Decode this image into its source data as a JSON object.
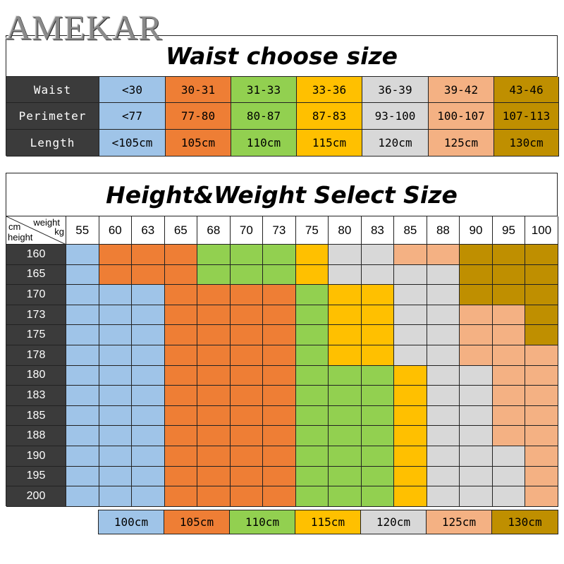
{
  "brand": "AMEKAR",
  "colors": {
    "blue": "#9fc4e8",
    "orange": "#ee7e35",
    "green": "#92d050",
    "yellow": "#ffc000",
    "gray": "#d8d8d8",
    "peach": "#f4b183",
    "brown": "#bf8f00",
    "header_dark": "#3b3b3b"
  },
  "waist_table": {
    "title": "Waist choose size",
    "rows": [
      {
        "label": "Waist",
        "values": [
          "<30",
          "30-31",
          "31-33",
          "33-36",
          "36-39",
          "39-42",
          "43-46"
        ]
      },
      {
        "label": "Perimeter",
        "values": [
          "<77",
          "77-80",
          "80-87",
          "87-83",
          "93-100",
          "100-107",
          "107-113"
        ]
      },
      {
        "label": "Length",
        "values": [
          "<105cm",
          "105cm",
          "110cm",
          "115cm",
          "120cm",
          "125cm",
          "130cm"
        ]
      }
    ],
    "column_colors": [
      "blue",
      "orange",
      "green",
      "yellow",
      "gray",
      "peach",
      "brown"
    ]
  },
  "size_table": {
    "title": "Height&Weight Select Size",
    "corner": {
      "weight": "weight",
      "kg": "kg",
      "cm": "cm",
      "height": "height"
    },
    "weights": [
      "55",
      "60",
      "63",
      "65",
      "68",
      "70",
      "73",
      "75",
      "80",
      "83",
      "85",
      "88",
      "90",
      "95",
      "100"
    ],
    "rows": [
      {
        "height": "160",
        "cells": [
          "blue",
          "orange",
          "orange",
          "orange",
          "green",
          "green",
          "green",
          "yellow",
          "gray",
          "gray",
          "peach",
          "peach",
          "brown",
          "brown",
          "brown"
        ]
      },
      {
        "height": "165",
        "cells": [
          "blue",
          "orange",
          "orange",
          "orange",
          "green",
          "green",
          "green",
          "yellow",
          "gray",
          "gray",
          "gray",
          "gray",
          "brown",
          "brown",
          "brown"
        ]
      },
      {
        "height": "170",
        "cells": [
          "blue",
          "blue",
          "blue",
          "orange",
          "orange",
          "orange",
          "orange",
          "green",
          "yellow",
          "yellow",
          "gray",
          "gray",
          "brown",
          "brown",
          "brown"
        ]
      },
      {
        "height": "173",
        "cells": [
          "blue",
          "blue",
          "blue",
          "orange",
          "orange",
          "orange",
          "orange",
          "green",
          "yellow",
          "yellow",
          "gray",
          "gray",
          "peach",
          "peach",
          "brown"
        ]
      },
      {
        "height": "175",
        "cells": [
          "blue",
          "blue",
          "blue",
          "orange",
          "orange",
          "orange",
          "orange",
          "green",
          "yellow",
          "yellow",
          "gray",
          "gray",
          "peach",
          "peach",
          "brown"
        ]
      },
      {
        "height": "178",
        "cells": [
          "blue",
          "blue",
          "blue",
          "orange",
          "orange",
          "orange",
          "orange",
          "green",
          "yellow",
          "yellow",
          "gray",
          "gray",
          "peach",
          "peach",
          "peach"
        ]
      },
      {
        "height": "180",
        "cells": [
          "blue",
          "blue",
          "blue",
          "orange",
          "orange",
          "orange",
          "orange",
          "green",
          "green",
          "green",
          "yellow",
          "gray",
          "gray",
          "peach",
          "peach"
        ]
      },
      {
        "height": "183",
        "cells": [
          "blue",
          "blue",
          "blue",
          "orange",
          "orange",
          "orange",
          "orange",
          "green",
          "green",
          "green",
          "yellow",
          "gray",
          "gray",
          "peach",
          "peach"
        ]
      },
      {
        "height": "185",
        "cells": [
          "blue",
          "blue",
          "blue",
          "orange",
          "orange",
          "orange",
          "orange",
          "green",
          "green",
          "green",
          "yellow",
          "gray",
          "gray",
          "peach",
          "peach"
        ]
      },
      {
        "height": "188",
        "cells": [
          "blue",
          "blue",
          "blue",
          "orange",
          "orange",
          "orange",
          "orange",
          "green",
          "green",
          "green",
          "yellow",
          "gray",
          "gray",
          "peach",
          "peach"
        ]
      },
      {
        "height": "190",
        "cells": [
          "blue",
          "blue",
          "blue",
          "orange",
          "orange",
          "orange",
          "orange",
          "green",
          "green",
          "green",
          "yellow",
          "gray",
          "gray",
          "gray",
          "peach"
        ]
      },
      {
        "height": "195",
        "cells": [
          "blue",
          "blue",
          "blue",
          "orange",
          "orange",
          "orange",
          "orange",
          "green",
          "green",
          "green",
          "yellow",
          "gray",
          "gray",
          "gray",
          "peach"
        ]
      },
      {
        "height": "200",
        "cells": [
          "blue",
          "blue",
          "blue",
          "orange",
          "orange",
          "orange",
          "orange",
          "green",
          "green",
          "green",
          "yellow",
          "gray",
          "gray",
          "gray",
          "peach"
        ]
      }
    ]
  },
  "legend": {
    "items": [
      {
        "label": "100cm",
        "color": "blue"
      },
      {
        "label": "105cm",
        "color": "orange"
      },
      {
        "label": "110cm",
        "color": "green"
      },
      {
        "label": "115cm",
        "color": "yellow"
      },
      {
        "label": "120cm",
        "color": "gray"
      },
      {
        "label": "125cm",
        "color": "peach"
      },
      {
        "label": "130cm",
        "color": "brown"
      }
    ]
  }
}
